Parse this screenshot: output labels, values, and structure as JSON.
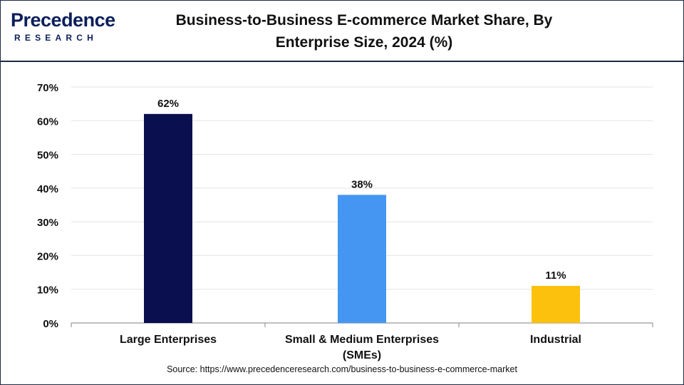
{
  "brand": {
    "logo_main": "Precedence",
    "logo_sub": "RESEARCH"
  },
  "chart_data": {
    "type": "bar",
    "title": "Business-to-Business E-commerce Market Share, By Enterprise Size, 2024 (%)",
    "title_line1": "Business-to-Business E-commerce Market Share, By",
    "title_line2": "Enterprise Size, 2024 (%)",
    "categories": [
      "Large Enterprises",
      "Small & Medium Enterprises (SMEs)",
      "Industrial"
    ],
    "category_lines": [
      [
        "Large Enterprises"
      ],
      [
        "Small & Medium Enterprises",
        "(SMEs)"
      ],
      [
        "Industrial"
      ]
    ],
    "values": [
      62,
      38,
      11
    ],
    "data_labels": [
      "62%",
      "38%",
      "11%"
    ],
    "colors": [
      "#0a0f4f",
      "#4496f2",
      "#fcc10d"
    ],
    "ylim": [
      0,
      70
    ],
    "yticks": [
      0,
      10,
      20,
      30,
      40,
      50,
      60,
      70
    ],
    "ytick_labels": [
      "0%",
      "10%",
      "20%",
      "30%",
      "40%",
      "50%",
      "60%",
      "70%"
    ],
    "grid": true,
    "xlabel": "",
    "ylabel": ""
  },
  "source": "Source: https://www.precedenceresearch.com/business-to-business-e-commerce-market"
}
